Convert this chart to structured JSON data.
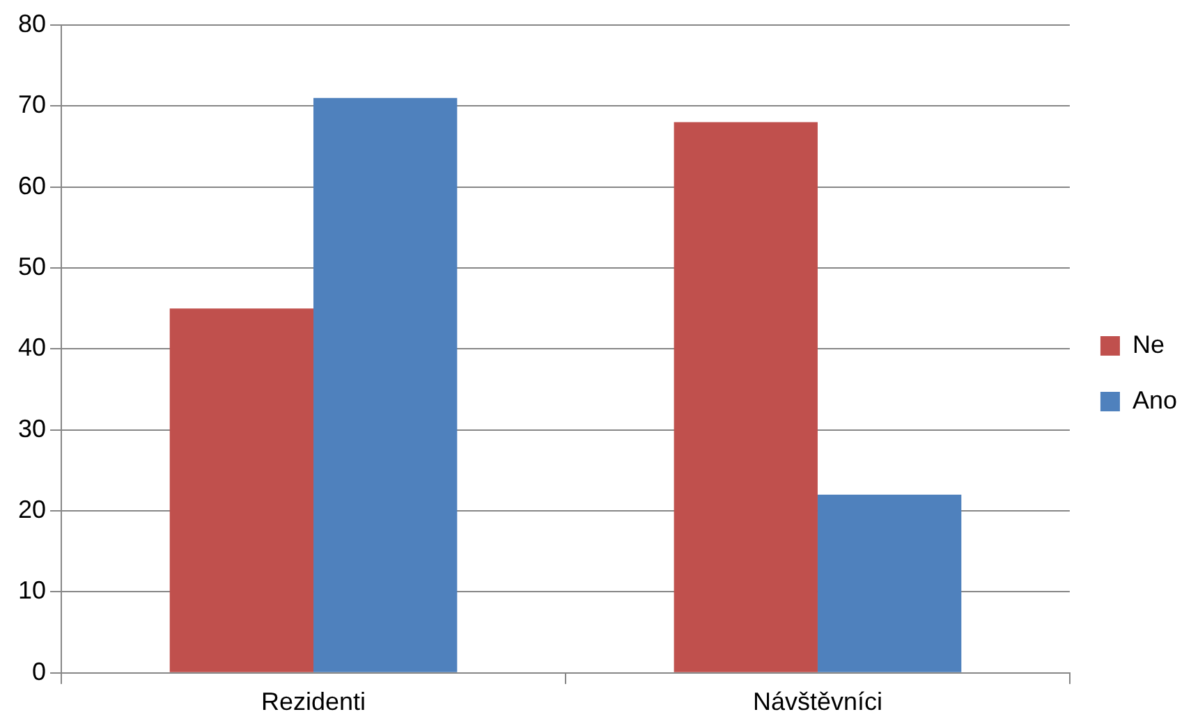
{
  "chart_data": {
    "type": "bar",
    "categories": [
      "Rezidenti",
      "Návštěvníci"
    ],
    "series": [
      {
        "name": "Ne",
        "color": "#c0504d",
        "values": [
          45,
          68
        ]
      },
      {
        "name": "Ano",
        "color": "#4f81bd",
        "values": [
          71,
          22
        ]
      }
    ],
    "ylim": [
      0,
      80
    ],
    "yticks": [
      0,
      10,
      20,
      30,
      40,
      50,
      60,
      70,
      80
    ],
    "grid": "y",
    "legend": "right"
  }
}
